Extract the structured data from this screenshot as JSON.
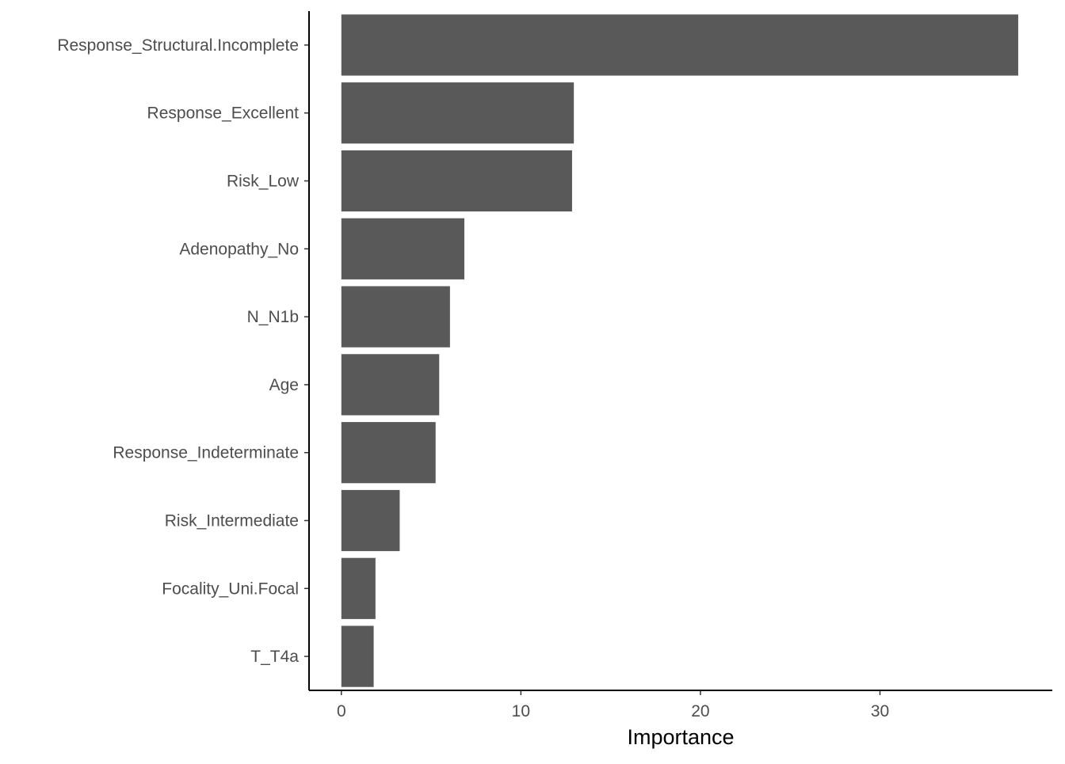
{
  "chart_data": {
    "type": "bar",
    "orientation": "horizontal",
    "categories": [
      "Response_Structural.Incomplete",
      "Response_Excellent",
      "Risk_Low",
      "Adenopathy_No",
      "N_N1b",
      "Age",
      "Response_Indeterminate",
      "Risk_Intermediate",
      "Focality_Uni.Focal",
      "T_T4a"
    ],
    "values": [
      37.7,
      12.95,
      12.85,
      6.85,
      6.05,
      5.45,
      5.25,
      3.25,
      1.9,
      1.8
    ],
    "xlabel": "Importance",
    "ylabel": "",
    "xlim": [
      -1.8,
      39.6
    ],
    "xticks": [
      0,
      10,
      20,
      30
    ],
    "bar_color": "#595959",
    "grid": false,
    "legend": "none"
  }
}
